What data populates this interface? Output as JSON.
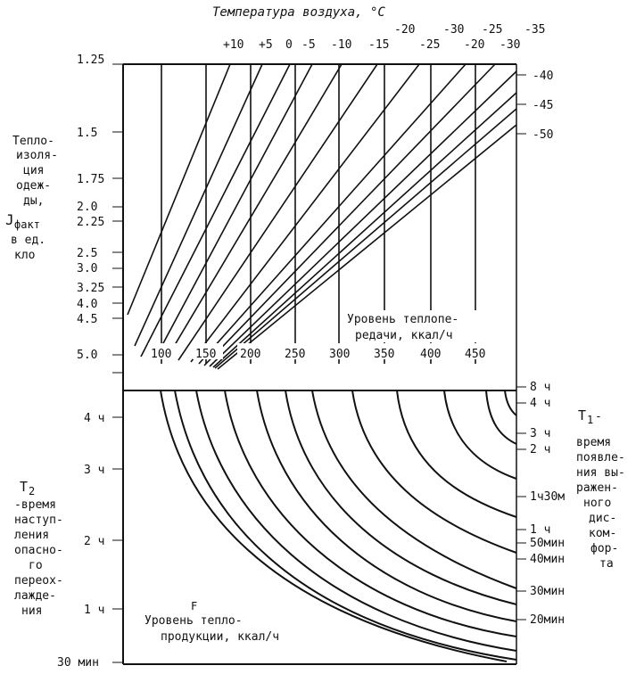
{
  "title": "Температура воздуха, °C",
  "top_row1": [
    "-20",
    "-30",
    "-25",
    "-35"
  ],
  "top_row2": [
    "+10",
    "+5",
    "0",
    "-5",
    "-10",
    "-15",
    "-25",
    "-20",
    "-30"
  ],
  "right_upper_temps": [
    "-40",
    "-45",
    "-50"
  ],
  "left_upper_ticks": [
    "1.25",
    "1.5",
    "1.75",
    "2.0",
    "2.25",
    "2.5",
    "3.0",
    "3.25",
    "4.0",
    "4.5",
    "5.0"
  ],
  "left_upper_label": [
    "Тепло-",
    "изоля-",
    "ция",
    "одеж-",
    "ды,",
    "J",
    "факт",
    "в ед.",
    "кло"
  ],
  "heat_transfer_ticks": [
    "100",
    "150",
    "200",
    "250",
    "300",
    "350",
    "400",
    "450"
  ],
  "heat_transfer_label": [
    "Уровень теплопе-",
    "редачи, ккал/ч"
  ],
  "left_lower_ticks": [
    "4 ч",
    "3 ч",
    "2 ч",
    "1 ч",
    "30 мин"
  ],
  "left_lower_label": [
    "T",
    "2",
    "-время",
    "наступ-",
    "ления",
    "опасно-",
    "го",
    "переох-",
    "лажде-",
    "ния"
  ],
  "right_lower_ticks": [
    "8 ч",
    "4 ч",
    "3 ч",
    "2 ч",
    "1ч30м",
    "1 ч",
    "50мин",
    "40мин",
    "30мин",
    "20мин"
  ],
  "right_lower_label": [
    "T",
    "1",
    " -",
    "время",
    "появле-",
    "ния вы-",
    "ражен-",
    "ного",
    "дис-",
    "ком-",
    "фор-",
    "та"
  ],
  "heat_production_label": [
    "Уровень тепло-",
    "продукции, ккал/ч"
  ],
  "marker_f": "F"
}
